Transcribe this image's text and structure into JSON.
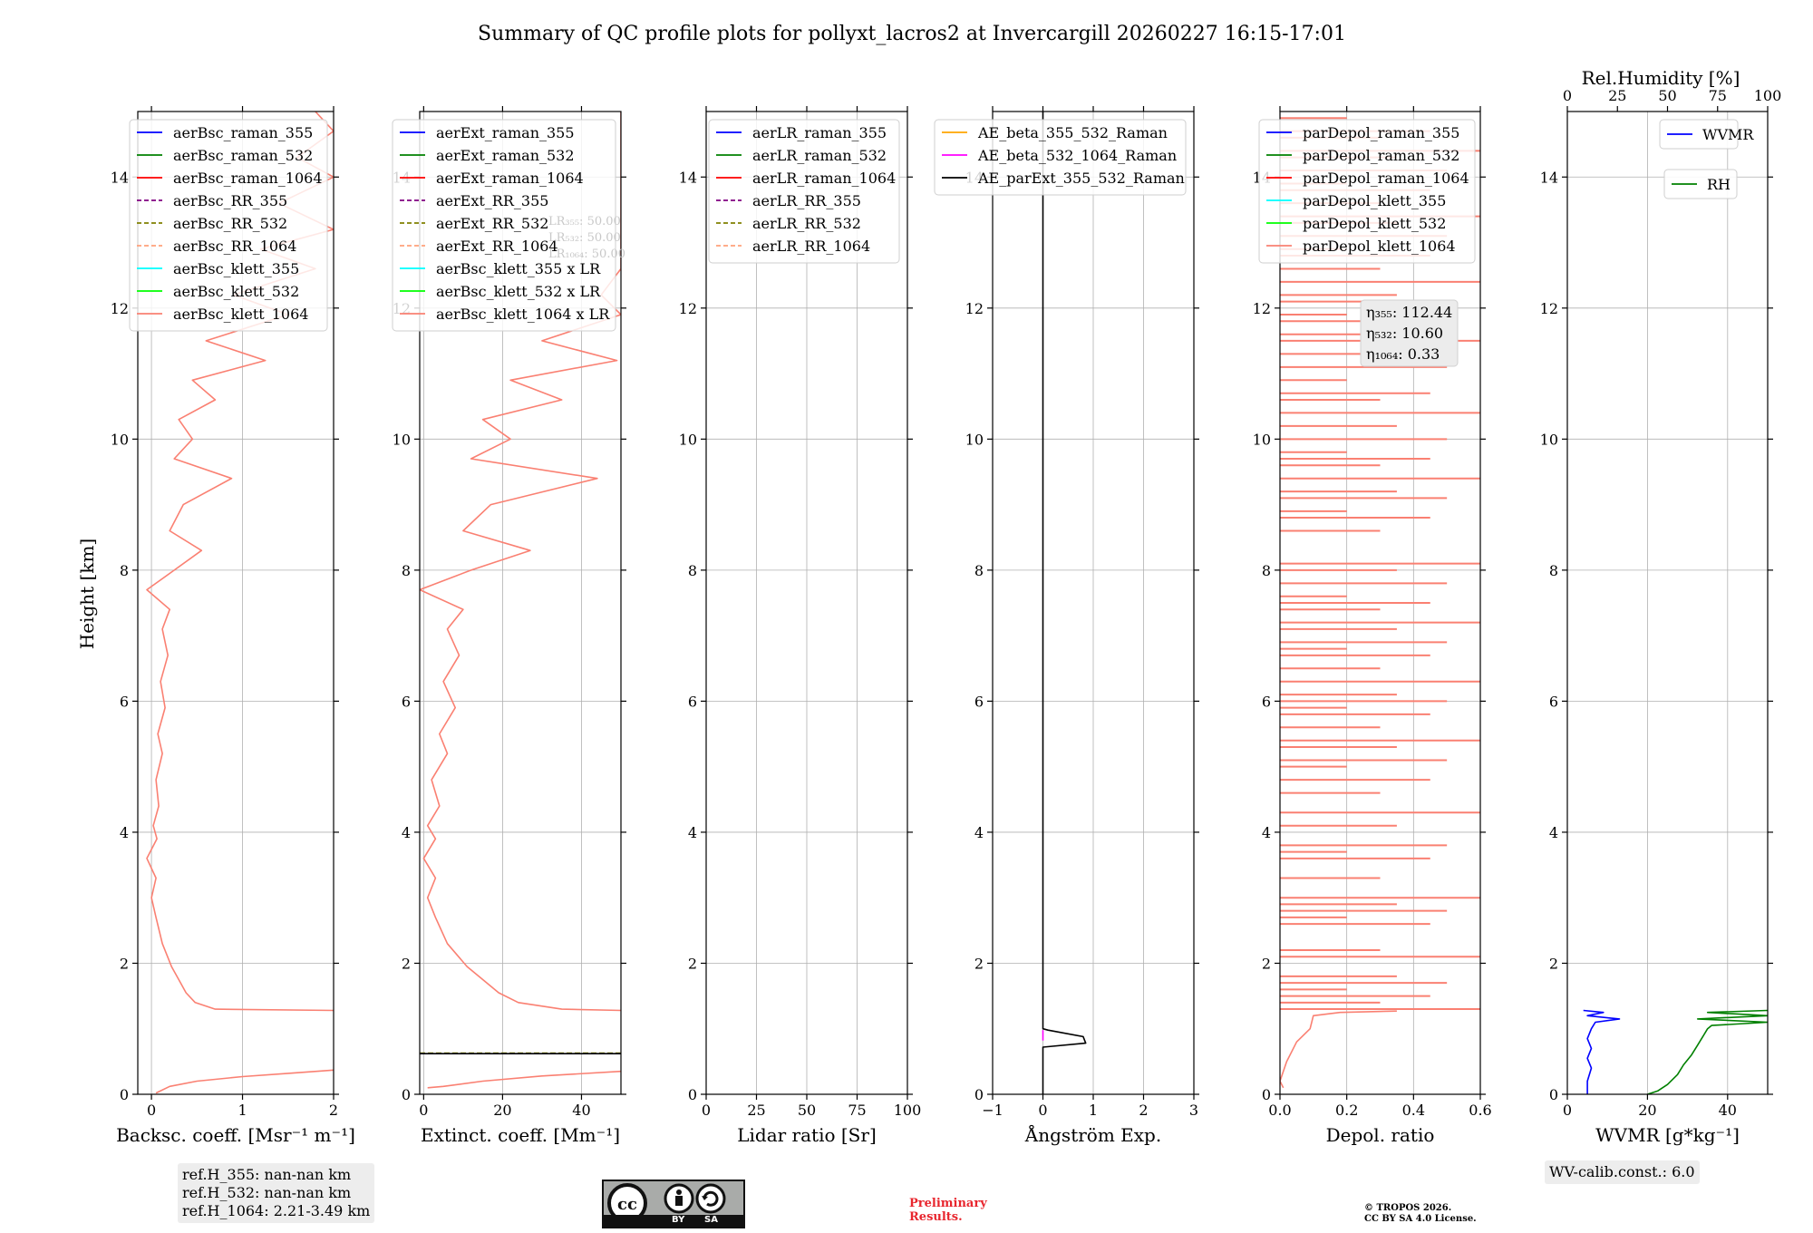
{
  "title": "Summary of QC profile plots for pollyxt_lacros2 at Invercargill 20260227 16:15-17:01",
  "ylabel": "Height [km]",
  "yticks": [
    0,
    2,
    4,
    6,
    8,
    10,
    12,
    14
  ],
  "ylim": [
    0,
    15
  ],
  "colors": {
    "salmon": "#fa8072",
    "blue": "#0000ff",
    "green": "#008000",
    "red": "#ff0000",
    "purple": "#800080",
    "olive": "#808000",
    "lightsalmon": "#ffa07a",
    "cyan": "#00ffff",
    "lime": "#00ff00",
    "orange": "#ffa500",
    "magenta": "#ff00ff",
    "black": "#000000",
    "grid": "#b0b0b0"
  },
  "chart_data": [
    {
      "type": "line",
      "xlabel": "Backsc. coeff. [Msr⁻¹ m⁻¹]",
      "xlim": [
        -0.15,
        2
      ],
      "xticks": [
        0,
        1,
        2
      ],
      "xtick_labels": [
        "0",
        "1",
        "2"
      ],
      "legend": [
        "aerBsc_raman_355",
        "aerBsc_raman_532",
        "aerBsc_raman_1064",
        "aerBsc_RR_355",
        "aerBsc_RR_532",
        "aerBsc_RR_1064",
        "aerBsc_klett_355",
        "aerBsc_klett_532",
        "aerBsc_klett_1064"
      ],
      "series": [
        {
          "name": "aerBsc_klett_1064",
          "color": "#fa8072",
          "segments": [
            [
              [
                0.05,
                0.02
              ],
              [
                0.2,
                0.12
              ],
              [
                0.5,
                0.2
              ],
              [
                1.0,
                0.27
              ],
              [
                1.5,
                0.32
              ],
              [
                2.0,
                0.37
              ]
            ],
            [
              [
                2.0,
                1.28
              ],
              [
                0.7,
                1.3
              ],
              [
                0.48,
                1.4
              ],
              [
                0.38,
                1.55
              ],
              [
                0.3,
                1.75
              ],
              [
                0.22,
                1.95
              ],
              [
                0.12,
                2.3
              ],
              [
                0.05,
                2.7
              ],
              [
                0.0,
                3.0
              ],
              [
                0.05,
                3.3
              ],
              [
                -0.05,
                3.6
              ],
              [
                0.06,
                3.9
              ],
              [
                0.02,
                4.1
              ],
              [
                0.08,
                4.4
              ],
              [
                0.05,
                4.8
              ],
              [
                0.12,
                5.2
              ],
              [
                0.07,
                5.5
              ],
              [
                0.15,
                5.9
              ],
              [
                0.1,
                6.3
              ],
              [
                0.18,
                6.7
              ],
              [
                0.12,
                7.1
              ],
              [
                0.2,
                7.4
              ],
              [
                -0.05,
                7.7
              ],
              [
                0.25,
                8.0
              ],
              [
                0.55,
                8.3
              ],
              [
                0.2,
                8.6
              ],
              [
                0.35,
                9.0
              ],
              [
                0.88,
                9.4
              ],
              [
                0.25,
                9.7
              ],
              [
                0.45,
                10.0
              ],
              [
                0.3,
                10.3
              ],
              [
                0.7,
                10.6
              ],
              [
                0.45,
                10.9
              ],
              [
                1.25,
                11.2
              ],
              [
                0.6,
                11.5
              ],
              [
                1.5,
                11.9
              ],
              [
                0.9,
                12.2
              ],
              [
                1.8,
                12.6
              ],
              [
                1.2,
                12.9
              ],
              [
                2.0,
                13.2
              ],
              [
                1.4,
                13.6
              ],
              [
                2.0,
                14.0
              ],
              [
                1.6,
                14.3
              ],
              [
                2.0,
                14.7
              ],
              [
                1.8,
                15.0
              ]
            ]
          ]
        }
      ]
    },
    {
      "type": "line",
      "xlabel": "Extinct. coeff. [Mm⁻¹]",
      "xlim": [
        -1,
        50
      ],
      "xticks": [
        0,
        20,
        40
      ],
      "xtick_labels": [
        "0",
        "20",
        "40"
      ],
      "legend": [
        "aerExt_raman_355",
        "aerExt_raman_532",
        "aerExt_raman_1064",
        "aerExt_RR_355",
        "aerExt_RR_532",
        "aerExt_RR_1064",
        "aerBsc_klett_355 x LR",
        "aerBsc_klett_532 x LR",
        "aerBsc_klett_1064 x LR"
      ],
      "lr_notes": [
        "LR₃₅₅: 50.00",
        "LR₅₃₂: 50.00",
        "LR₁₀₆₄: 50.00"
      ],
      "series": [
        {
          "name": "aerBsc_klett_1064 x LR",
          "color": "#fa8072",
          "segments": [
            [
              [
                1,
                0.1
              ],
              [
                5,
                0.12
              ],
              [
                15,
                0.2
              ],
              [
                30,
                0.28
              ],
              [
                50,
                0.35
              ]
            ],
            [
              [
                50,
                1.28
              ],
              [
                35,
                1.3
              ],
              [
                24,
                1.4
              ],
              [
                19,
                1.55
              ],
              [
                15,
                1.75
              ],
              [
                11,
                1.95
              ],
              [
                6,
                2.3
              ],
              [
                3,
                2.7
              ],
              [
                1,
                3.0
              ],
              [
                3,
                3.3
              ],
              [
                0,
                3.6
              ],
              [
                3,
                3.9
              ],
              [
                1,
                4.1
              ],
              [
                4,
                4.4
              ],
              [
                2,
                4.8
              ],
              [
                6,
                5.2
              ],
              [
                4,
                5.5
              ],
              [
                8,
                5.9
              ],
              [
                5,
                6.3
              ],
              [
                9,
                6.7
              ],
              [
                6,
                7.1
              ],
              [
                10,
                7.4
              ],
              [
                -1,
                7.7
              ],
              [
                12,
                8.0
              ],
              [
                27,
                8.3
              ],
              [
                10,
                8.6
              ],
              [
                17,
                9.0
              ],
              [
                44,
                9.4
              ],
              [
                12,
                9.7
              ],
              [
                22,
                10.0
              ],
              [
                15,
                10.3
              ],
              [
                35,
                10.6
              ],
              [
                22,
                10.9
              ],
              [
                49,
                11.2
              ],
              [
                30,
                11.5
              ],
              [
                50,
                11.9
              ],
              [
                45,
                12.2
              ],
              [
                50,
                12.6
              ],
              [
                50,
                13.2
              ],
              [
                50,
                14.0
              ],
              [
                50,
                15.0
              ]
            ]
          ]
        },
        {
          "name": "aerExt_RR_532",
          "color": "#808000",
          "dashed": true,
          "segments": [
            [
              [
                -1,
                0.63
              ],
              [
                50,
                0.63
              ]
            ]
          ]
        },
        {
          "name": "aerExt_raman_532",
          "color": "#000000",
          "segments": [
            [
              [
                -1,
                0.62
              ],
              [
                50,
                0.62
              ]
            ]
          ]
        }
      ]
    },
    {
      "type": "line",
      "xlabel": "Lidar ratio [Sr]",
      "xlim": [
        0,
        100
      ],
      "xticks": [
        0,
        25,
        50,
        75,
        100
      ],
      "xtick_labels": [
        "0",
        "25",
        "50",
        "75",
        "100"
      ],
      "legend": [
        "aerLR_raman_355",
        "aerLR_raman_532",
        "aerLR_raman_1064",
        "aerLR_RR_355",
        "aerLR_RR_532",
        "aerLR_RR_1064"
      ],
      "series": []
    },
    {
      "type": "line",
      "xlabel": "Ångström Exp.",
      "xlim": [
        -1,
        3
      ],
      "xticks": [
        -1,
        0,
        1,
        2,
        3
      ],
      "xtick_labels": [
        "−1",
        "0",
        "1",
        "2",
        "3"
      ],
      "legend": [
        "AE_beta_355_532_Raman",
        "AE_beta_532_1064_Raman",
        "AE_parExt_355_532_Raman"
      ],
      "series": [
        {
          "name": "AE_beta_532_1064_Raman",
          "color": "#ff00ff",
          "segments": [
            [
              [
                0,
                0.82
              ],
              [
                0,
                0.98
              ]
            ]
          ]
        },
        {
          "name": "AE_parExt_355_532_Raman",
          "color": "#000000",
          "segments": [
            [
              [
                0,
                0.0
              ],
              [
                0,
                0.72
              ],
              [
                0.85,
                0.78
              ],
              [
                0.8,
                0.88
              ],
              [
                0.1,
                0.98
              ],
              [
                0,
                1.0
              ],
              [
                0,
                15.0
              ]
            ]
          ]
        }
      ]
    },
    {
      "type": "line",
      "xlabel": "Depol. ratio",
      "xlim": [
        0,
        0.6
      ],
      "xticks": [
        0,
        0.2,
        0.4,
        0.6
      ],
      "xtick_labels": [
        "0.0",
        "0.2",
        "0.4",
        "0.6"
      ],
      "legend": [
        "parDepol_raman_355",
        "parDepol_raman_532",
        "parDepol_raman_1064",
        "parDepol_klett_355",
        "parDepol_klett_532",
        "parDepol_klett_1064"
      ],
      "eta_notes": [
        "η₃₅₅: 112.44",
        "η₅₃₂: 10.60",
        "η₁₀₆₄: 0.33"
      ],
      "series": [
        {
          "name": "parDepol_klett_1064",
          "color": "#fa8072",
          "segments": [
            [
              [
                0.01,
                0.1
              ],
              [
                0.0,
                0.2
              ],
              [
                0.02,
                0.5
              ],
              [
                0.05,
                0.8
              ],
              [
                0.09,
                1.0
              ],
              [
                0.1,
                1.2
              ],
              [
                0.18,
                1.25
              ],
              [
                0.35,
                1.27
              ]
            ]
          ],
          "spikes": [
            1.3,
            1.4,
            1.5,
            1.6,
            1.7,
            1.8,
            2.1,
            2.2,
            2.6,
            2.7,
            2.8,
            2.9,
            3.0,
            3.3,
            3.6,
            3.7,
            3.8,
            4.1,
            4.3,
            4.6,
            4.8,
            5.0,
            5.1,
            5.3,
            5.4,
            5.6,
            5.8,
            5.9,
            6.0,
            6.1,
            6.3,
            6.5,
            6.7,
            6.8,
            6.9,
            7.1,
            7.2,
            7.4,
            7.5,
            7.6,
            7.8,
            8.0,
            8.1,
            8.6,
            8.8,
            8.9,
            9.1,
            9.2,
            9.4,
            9.6,
            9.7,
            9.8,
            10.0,
            10.2,
            10.4,
            10.6,
            10.7,
            10.9,
            11.1,
            11.3,
            11.5,
            11.6,
            11.8,
            11.9,
            12.1,
            12.2,
            12.4,
            12.6,
            12.8,
            12.9,
            13.1,
            13.3,
            13.4,
            13.6,
            13.8,
            13.9,
            14.1,
            14.3,
            14.4,
            14.6,
            14.7,
            14.9
          ]
        }
      ]
    },
    {
      "type": "line",
      "xlabel": "WVMR [g*kg⁻¹]",
      "xlim": [
        0,
        50
      ],
      "xticks": [
        0,
        20,
        40
      ],
      "xtick_labels": [
        "0",
        "20",
        "40"
      ],
      "x2label": "Rel.Humidity [%]",
      "x2lim": [
        0,
        100
      ],
      "x2ticks": [
        0,
        25,
        50,
        75,
        100
      ],
      "x2tick_labels": [
        "0",
        "25",
        "50",
        "75",
        "100"
      ],
      "legend": [
        "WVMR",
        "RH"
      ],
      "series": [
        {
          "name": "WVMR",
          "color": "#0000ff",
          "segments": [
            [
              [
                5,
                0.0
              ],
              [
                5,
                0.2
              ],
              [
                6,
                0.4
              ],
              [
                5,
                0.55
              ],
              [
                6,
                0.7
              ],
              [
                5,
                0.85
              ],
              [
                6,
                1.0
              ],
              [
                7,
                1.1
              ],
              [
                13,
                1.15
              ],
              [
                5,
                1.2
              ],
              [
                9,
                1.25
              ],
              [
                4,
                1.28
              ]
            ]
          ]
        },
        {
          "name": "RH",
          "axis": "x2",
          "color": "#008000",
          "segments": [
            [
              [
                40,
                0.0
              ],
              [
                45,
                0.05
              ],
              [
                50,
                0.15
              ],
              [
                55,
                0.3
              ],
              [
                58,
                0.45
              ],
              [
                62,
                0.6
              ],
              [
                65,
                0.75
              ],
              [
                68,
                0.9
              ],
              [
                70,
                1.0
              ],
              [
                72,
                1.05
              ],
              [
                100,
                1.1
              ],
              [
                65,
                1.15
              ],
              [
                100,
                1.2
              ],
              [
                70,
                1.25
              ],
              [
                100,
                1.28
              ]
            ]
          ]
        }
      ]
    }
  ],
  "info": {
    "ref_h": [
      "ref.H_355: nan-nan km",
      "ref.H_532: nan-nan km",
      "ref.H_1064: 2.21-3.49 km"
    ],
    "wv_calib": "WV-calib.const.: 6.0"
  },
  "footer": {
    "license_badge": [
      "BY",
      "SA"
    ],
    "preliminary": [
      "Preliminary",
      "Results."
    ],
    "copyright": [
      "© TROPOS 2026.",
      "CC BY SA 4.0 License."
    ]
  }
}
